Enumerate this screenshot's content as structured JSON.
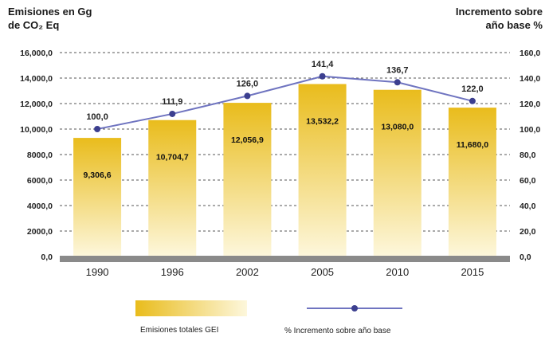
{
  "chart_data": {
    "type": "bar",
    "categories": [
      "1990",
      "1996",
      "2002",
      "2005",
      "2010",
      "2015"
    ],
    "series": [
      {
        "name": "Emisiones totales GEI",
        "type": "bar",
        "axis": "left",
        "values": [
          9306.6,
          10704.7,
          12056.9,
          13532.2,
          13080.0,
          11680.0
        ],
        "labels": [
          "9,306,6",
          "10,704,7",
          "12,056,9",
          "13,532,2",
          "13,080,0",
          "11,680,0"
        ]
      },
      {
        "name": "% Incremento sobre año base",
        "type": "line",
        "axis": "right",
        "values": [
          100.0,
          111.9,
          126.0,
          141.4,
          136.7,
          122.0
        ],
        "labels": [
          "100,0",
          "111,9",
          "126,0",
          "141,4",
          "136,7",
          "122,0"
        ]
      }
    ],
    "left_axis": {
      "title_line1": "Emisiones en Gg",
      "title_line2": "de CO₂ Eq",
      "ylim": [
        0,
        16000
      ],
      "ticks": [
        "0,0",
        "2000,0",
        "4000,0",
        "6000,0",
        "8000,0",
        "10,000,0",
        "12,000,0",
        "14,000,0",
        "16,000,0"
      ]
    },
    "right_axis": {
      "title_line1": "Incremento sobre",
      "title_line2": "año base %",
      "ylim": [
        0,
        160
      ],
      "ticks": [
        "0,0",
        "20,0",
        "40,0",
        "60,0",
        "80,0",
        "100,0",
        "120,0",
        "140,0",
        "160,0"
      ]
    },
    "grid": "dashed horizontal",
    "legend_position": "bottom",
    "colors": {
      "bar_top": "#e9bc1c",
      "bar_bottom": "#fdf7dc",
      "line": "#6f74c0",
      "marker": "#3c3f8f",
      "baseline": "#8a8a8a"
    }
  }
}
